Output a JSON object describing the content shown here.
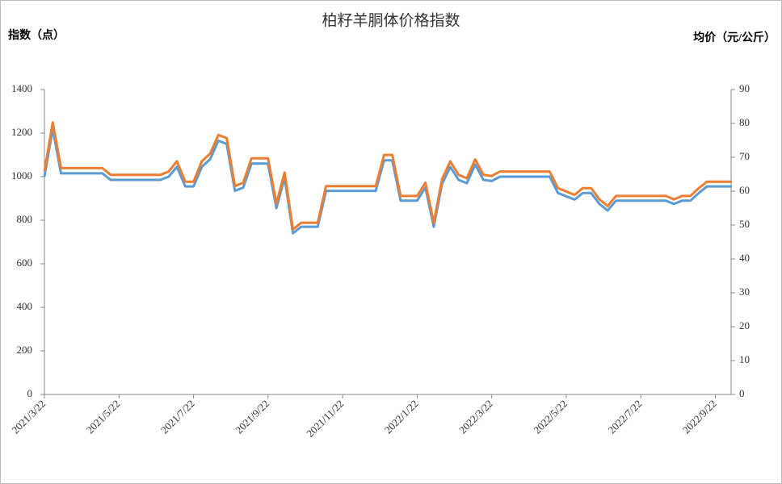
{
  "chart_data": {
    "type": "line",
    "title": "柏籽羊胴体价格指数",
    "y_label": "指数（点）",
    "y2_label": "均价（元/公斤）",
    "categories": [
      "2021/3/22",
      null,
      null,
      null,
      null,
      null,
      null,
      null,
      null,
      "2021/5/22",
      null,
      null,
      null,
      null,
      null,
      null,
      null,
      null,
      "2021/7/22",
      null,
      null,
      null,
      null,
      null,
      null,
      null,
      null,
      "2021/9/22",
      null,
      null,
      null,
      null,
      null,
      null,
      null,
      null,
      "2021/11/22",
      null,
      null,
      null,
      null,
      null,
      null,
      null,
      null,
      "2022/1/22",
      null,
      null,
      null,
      null,
      null,
      null,
      null,
      null,
      "2022/3/22",
      null,
      null,
      null,
      null,
      null,
      null,
      null,
      null,
      "2022/5/22",
      null,
      null,
      null,
      null,
      null,
      null,
      null,
      null,
      "2022/7/22",
      null,
      null,
      null,
      null,
      null,
      null,
      null,
      null,
      "2022/9/22",
      null,
      null
    ],
    "series": [
      {
        "color": "#5b9bd5",
        "values": [
          1000,
          1220,
          1015,
          1015,
          1015,
          1015,
          1015,
          1015,
          985,
          985,
          985,
          985,
          985,
          985,
          985,
          1000,
          1045,
          955,
          955,
          1045,
          1080,
          1165,
          1150,
          935,
          950,
          1060,
          1060,
          1060,
          855,
          995,
          740,
          770,
          770,
          770,
          935,
          935,
          935,
          935,
          935,
          935,
          935,
          1075,
          1075,
          890,
          890,
          890,
          950,
          770,
          965,
          1045,
          985,
          970,
          1055,
          985,
          980,
          1000,
          1000,
          1000,
          1000,
          1000,
          1000,
          1000,
          925,
          910,
          895,
          925,
          925,
          875,
          845,
          890,
          890,
          890,
          890,
          890,
          890,
          890,
          875,
          890,
          890,
          925,
          955,
          955,
          955,
          955
        ]
      },
      {
        "color": "#ed7d31",
        "axis": "y2",
        "values": [
          65.8,
          80.3,
          66.8,
          66.8,
          66.8,
          66.8,
          66.8,
          66.8,
          64.8,
          64.8,
          64.8,
          64.8,
          64.8,
          64.8,
          64.8,
          65.8,
          68.8,
          62.8,
          62.8,
          68.8,
          71.1,
          76.6,
          75.7,
          61.5,
          62.5,
          69.7,
          69.7,
          69.7,
          56.3,
          65.5,
          48.7,
          50.7,
          50.7,
          50.7,
          61.5,
          61.5,
          61.5,
          61.5,
          61.5,
          61.5,
          61.5,
          70.7,
          70.7,
          58.6,
          58.6,
          58.6,
          62.5,
          50.7,
          63.5,
          68.8,
          64.8,
          63.8,
          69.4,
          64.8,
          64.5,
          65.8,
          65.8,
          65.8,
          65.8,
          65.8,
          65.8,
          65.8,
          60.9,
          59.9,
          58.9,
          60.9,
          60.9,
          57.6,
          55.6,
          58.6,
          58.6,
          58.6,
          58.6,
          58.6,
          58.6,
          58.6,
          57.6,
          58.6,
          58.6,
          60.9,
          62.8,
          62.8,
          62.8,
          62.8
        ]
      }
    ],
    "ylim": [
      0,
      1400
    ],
    "yticks": [
      0,
      200,
      400,
      600,
      800,
      1000,
      1200,
      1400
    ],
    "y2lim": [
      0,
      90
    ],
    "y2ticks": [
      0,
      10,
      20,
      30,
      40,
      50,
      60,
      70,
      80,
      90
    ]
  }
}
